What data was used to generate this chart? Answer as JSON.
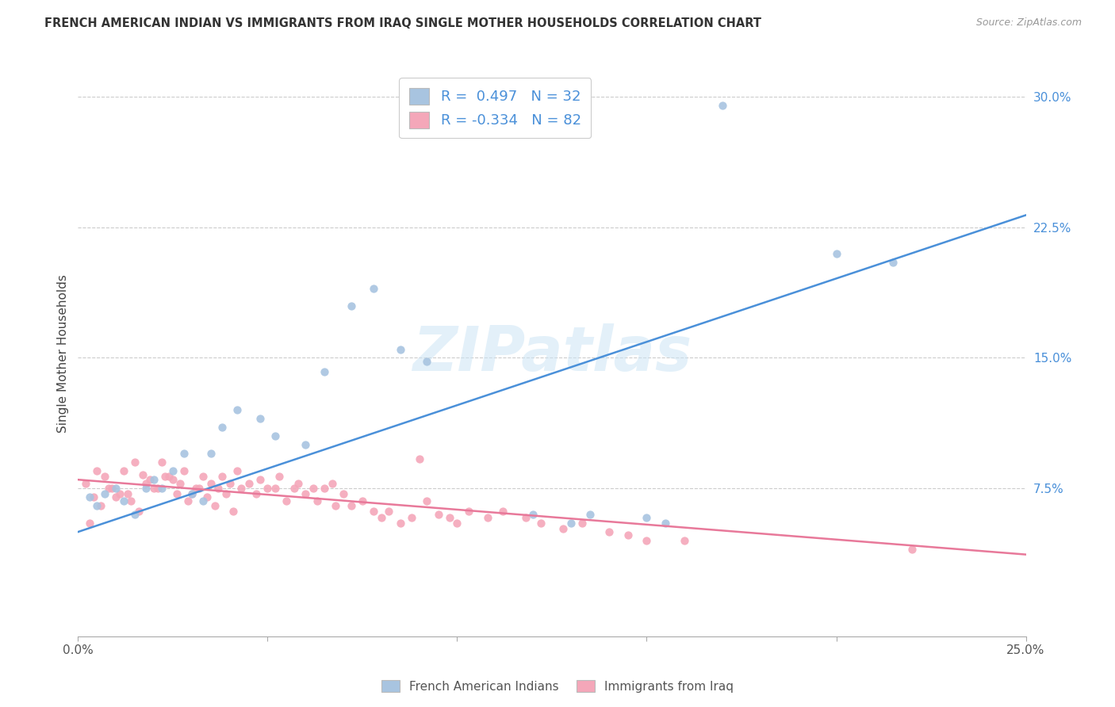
{
  "title": "FRENCH AMERICAN INDIAN VS IMMIGRANTS FROM IRAQ SINGLE MOTHER HOUSEHOLDS CORRELATION CHART",
  "source": "Source: ZipAtlas.com",
  "ylabel": "Single Mother Households",
  "xlim": [
    0.0,
    0.25
  ],
  "ylim": [
    -0.01,
    0.315
  ],
  "yticks": [
    0.075,
    0.15,
    0.225,
    0.3
  ],
  "ytick_labels": [
    "7.5%",
    "15.0%",
    "22.5%",
    "30.0%"
  ],
  "xticks": [
    0.0,
    0.05,
    0.1,
    0.15,
    0.2,
    0.25
  ],
  "xtick_labels": [
    "0.0%",
    "",
    "",
    "",
    "",
    "25.0%"
  ],
  "blue_R": 0.497,
  "blue_N": 32,
  "pink_R": -0.334,
  "pink_N": 82,
  "blue_color": "#a8c4e0",
  "pink_color": "#f4a7b9",
  "blue_line_color": "#4a90d9",
  "pink_line_color": "#e8799a",
  "watermark": "ZIPatlas",
  "background_color": "#ffffff",
  "grid_color": "#cccccc",
  "blue_scatter_x": [
    0.003,
    0.005,
    0.007,
    0.01,
    0.012,
    0.015,
    0.018,
    0.02,
    0.022,
    0.025,
    0.028,
    0.03,
    0.033,
    0.035,
    0.038,
    0.042,
    0.048,
    0.052,
    0.06,
    0.065,
    0.072,
    0.078,
    0.085,
    0.092,
    0.12,
    0.13,
    0.135,
    0.15,
    0.155,
    0.17,
    0.2,
    0.215
  ],
  "blue_scatter_y": [
    0.07,
    0.065,
    0.072,
    0.075,
    0.068,
    0.06,
    0.075,
    0.08,
    0.075,
    0.085,
    0.095,
    0.072,
    0.068,
    0.095,
    0.11,
    0.12,
    0.115,
    0.105,
    0.1,
    0.142,
    0.18,
    0.19,
    0.155,
    0.148,
    0.06,
    0.055,
    0.06,
    0.058,
    0.055,
    0.295,
    0.21,
    0.205
  ],
  "pink_scatter_x": [
    0.002,
    0.004,
    0.005,
    0.007,
    0.009,
    0.01,
    0.012,
    0.013,
    0.015,
    0.017,
    0.018,
    0.02,
    0.022,
    0.023,
    0.025,
    0.027,
    0.028,
    0.03,
    0.032,
    0.033,
    0.035,
    0.037,
    0.038,
    0.04,
    0.042,
    0.043,
    0.045,
    0.047,
    0.048,
    0.05,
    0.052,
    0.053,
    0.055,
    0.057,
    0.058,
    0.06,
    0.062,
    0.063,
    0.065,
    0.067,
    0.068,
    0.07,
    0.072,
    0.075,
    0.078,
    0.08,
    0.082,
    0.085,
    0.088,
    0.09,
    0.092,
    0.095,
    0.098,
    0.1,
    0.103,
    0.108,
    0.112,
    0.118,
    0.122,
    0.128,
    0.133,
    0.14,
    0.145,
    0.15,
    0.003,
    0.006,
    0.008,
    0.011,
    0.014,
    0.016,
    0.019,
    0.021,
    0.024,
    0.026,
    0.029,
    0.031,
    0.034,
    0.036,
    0.039,
    0.041,
    0.16,
    0.22
  ],
  "pink_scatter_y": [
    0.078,
    0.07,
    0.085,
    0.082,
    0.075,
    0.07,
    0.085,
    0.072,
    0.09,
    0.083,
    0.078,
    0.075,
    0.09,
    0.082,
    0.08,
    0.078,
    0.085,
    0.072,
    0.075,
    0.082,
    0.078,
    0.075,
    0.082,
    0.078,
    0.085,
    0.075,
    0.078,
    0.072,
    0.08,
    0.075,
    0.075,
    0.082,
    0.068,
    0.075,
    0.078,
    0.072,
    0.075,
    0.068,
    0.075,
    0.078,
    0.065,
    0.072,
    0.065,
    0.068,
    0.062,
    0.058,
    0.062,
    0.055,
    0.058,
    0.092,
    0.068,
    0.06,
    0.058,
    0.055,
    0.062,
    0.058,
    0.062,
    0.058,
    0.055,
    0.052,
    0.055,
    0.05,
    0.048,
    0.045,
    0.055,
    0.065,
    0.075,
    0.072,
    0.068,
    0.062,
    0.08,
    0.075,
    0.082,
    0.072,
    0.068,
    0.075,
    0.07,
    0.065,
    0.072,
    0.062,
    0.045,
    0.04
  ]
}
